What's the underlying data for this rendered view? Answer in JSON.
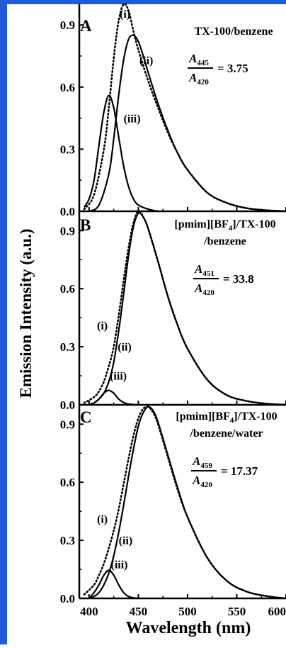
{
  "frame_color": "#1e5bd6",
  "line_color": "#000000",
  "x_axis_label": "Wavelength (nm)",
  "y_axis_label": "Emission Intensity (a.u.)",
  "x_ticks": [
    "400",
    "450",
    "500",
    "550",
    "600"
  ],
  "chart_data": [
    {
      "type": "line",
      "panel_letter": "A",
      "title": "TX-100/benzene",
      "xlim": [
        390,
        600
      ],
      "ylim": [
        0,
        1.0
      ],
      "yticks": [
        "0.0",
        "0.3",
        "0.6",
        "0.9"
      ],
      "ratio": {
        "numerator": "A",
        "numerator_sub": "445",
        "denominator": "A",
        "denominator_sub": "420",
        "value": "= 3.75"
      },
      "series": [
        {
          "name": "(i)",
          "style": "dotted",
          "x": [
            395,
            405,
            415,
            420,
            425,
            430,
            435,
            440,
            445,
            450,
            460,
            470,
            480,
            490,
            500,
            520,
            540,
            560,
            580,
            600
          ],
          "y": [
            0.01,
            0.08,
            0.3,
            0.5,
            0.74,
            0.92,
            1.0,
            0.97,
            0.87,
            0.78,
            0.63,
            0.5,
            0.38,
            0.28,
            0.2,
            0.09,
            0.04,
            0.015,
            0.005,
            0.0
          ]
        },
        {
          "name": "(ii)",
          "style": "solid",
          "x": [
            400,
            410,
            420,
            425,
            430,
            435,
            440,
            445,
            450,
            455,
            460,
            470,
            480,
            490,
            500,
            520,
            540,
            560,
            580,
            600
          ],
          "y": [
            0.0,
            0.03,
            0.18,
            0.35,
            0.56,
            0.73,
            0.83,
            0.85,
            0.82,
            0.75,
            0.67,
            0.52,
            0.39,
            0.28,
            0.2,
            0.09,
            0.04,
            0.015,
            0.005,
            0.0
          ]
        },
        {
          "name": "(iii)",
          "style": "solid",
          "x": [
            395,
            400,
            405,
            410,
            415,
            420,
            425,
            430,
            435,
            440,
            445,
            450,
            460,
            470
          ],
          "y": [
            0.02,
            0.06,
            0.15,
            0.32,
            0.48,
            0.56,
            0.5,
            0.36,
            0.22,
            0.12,
            0.06,
            0.03,
            0.01,
            0.0
          ]
        }
      ],
      "labels": [
        {
          "text": "(i)",
          "x": 431,
          "y": 0.935
        },
        {
          "text": "(ii)",
          "x": 451,
          "y": 0.71
        },
        {
          "text": "(iii)",
          "x": 435,
          "y": 0.43
        }
      ]
    },
    {
      "type": "line",
      "panel_letter": "B",
      "title": "[pmim][BF4]/TX-100",
      "title_line2": "/benzene",
      "xlim": [
        390,
        600
      ],
      "ylim": [
        0,
        1.0
      ],
      "yticks": [
        "0.0",
        "0.3",
        "0.6",
        "0.9"
      ],
      "ratio": {
        "numerator": "A",
        "numerator_sub": "451",
        "denominator": "A",
        "denominator_sub": "420",
        "value": "= 33.8"
      },
      "series": [
        {
          "name": "(i)",
          "style": "dotted",
          "x": [
            395,
            405,
            410,
            415,
            420,
            425,
            430,
            435,
            440,
            445,
            450,
            455,
            460,
            470,
            480,
            490,
            500,
            520,
            540,
            560,
            580,
            600
          ],
          "y": [
            0.01,
            0.04,
            0.07,
            0.12,
            0.2,
            0.3,
            0.46,
            0.64,
            0.81,
            0.94,
            1.0,
            0.97,
            0.91,
            0.74,
            0.56,
            0.41,
            0.29,
            0.13,
            0.05,
            0.02,
            0.006,
            0.0
          ]
        },
        {
          "name": "(ii)",
          "style": "solid",
          "x": [
            400,
            405,
            410,
            415,
            420,
            425,
            430,
            435,
            440,
            445,
            450,
            455,
            460,
            470,
            480,
            490,
            500,
            520,
            540,
            560,
            580,
            600
          ],
          "y": [
            0.0,
            0.01,
            0.03,
            0.06,
            0.12,
            0.22,
            0.38,
            0.57,
            0.77,
            0.92,
            0.99,
            0.97,
            0.91,
            0.74,
            0.56,
            0.41,
            0.29,
            0.13,
            0.05,
            0.02,
            0.006,
            0.0
          ]
        },
        {
          "name": "(iii)",
          "style": "solid",
          "x": [
            400,
            405,
            410,
            415,
            420,
            425,
            430,
            435,
            440,
            450
          ],
          "y": [
            0.0,
            0.01,
            0.03,
            0.06,
            0.075,
            0.06,
            0.03,
            0.012,
            0.004,
            0.0
          ]
        }
      ],
      "labels": [
        {
          "text": "(i)",
          "x": 408,
          "y": 0.39
        },
        {
          "text": "(ii)",
          "x": 429,
          "y": 0.28
        },
        {
          "text": "(iii)",
          "x": 421,
          "y": 0.13
        }
      ]
    },
    {
      "type": "line",
      "panel_letter": "C",
      "title": "[pmim][BF4]/TX-100",
      "title_line2": "/benzene/water",
      "xlim": [
        390,
        600
      ],
      "ylim": [
        0,
        1.0
      ],
      "yticks": [
        "0.0",
        "0.3",
        "0.6",
        "0.9"
      ],
      "ratio": {
        "numerator": "A",
        "numerator_sub": "459",
        "denominator": "A",
        "denominator_sub": "420",
        "value": "= 17.37"
      },
      "series": [
        {
          "name": "(i)",
          "style": "dotted",
          "x": [
            395,
            405,
            410,
            415,
            420,
            425,
            430,
            435,
            440,
            445,
            450,
            455,
            460,
            465,
            470,
            480,
            490,
            500,
            520,
            540,
            560,
            580,
            600
          ],
          "y": [
            0.02,
            0.07,
            0.12,
            0.18,
            0.26,
            0.35,
            0.46,
            0.59,
            0.72,
            0.84,
            0.93,
            0.98,
            0.99,
            0.96,
            0.9,
            0.73,
            0.56,
            0.42,
            0.21,
            0.09,
            0.035,
            0.012,
            0.0
          ]
        },
        {
          "name": "(ii)",
          "style": "solid",
          "x": [
            400,
            405,
            410,
            415,
            420,
            425,
            430,
            435,
            440,
            445,
            450,
            455,
            460,
            465,
            470,
            480,
            490,
            500,
            520,
            540,
            560,
            580,
            600
          ],
          "y": [
            0.0,
            0.01,
            0.03,
            0.07,
            0.13,
            0.22,
            0.34,
            0.48,
            0.63,
            0.77,
            0.89,
            0.96,
            0.99,
            0.97,
            0.91,
            0.74,
            0.57,
            0.42,
            0.21,
            0.09,
            0.035,
            0.012,
            0.0
          ]
        },
        {
          "name": "(iii)",
          "style": "solid",
          "x": [
            400,
            405,
            410,
            415,
            420,
            425,
            430,
            435,
            440,
            445,
            450
          ],
          "y": [
            0.0,
            0.03,
            0.07,
            0.12,
            0.145,
            0.12,
            0.07,
            0.03,
            0.01,
            0.003,
            0.0
          ]
        }
      ],
      "labels": [
        {
          "text": "(i)",
          "x": 408,
          "y": 0.39
        },
        {
          "text": "(ii)",
          "x": 430,
          "y": 0.28
        },
        {
          "text": "(iii)",
          "x": 422,
          "y": 0.155
        }
      ]
    }
  ]
}
